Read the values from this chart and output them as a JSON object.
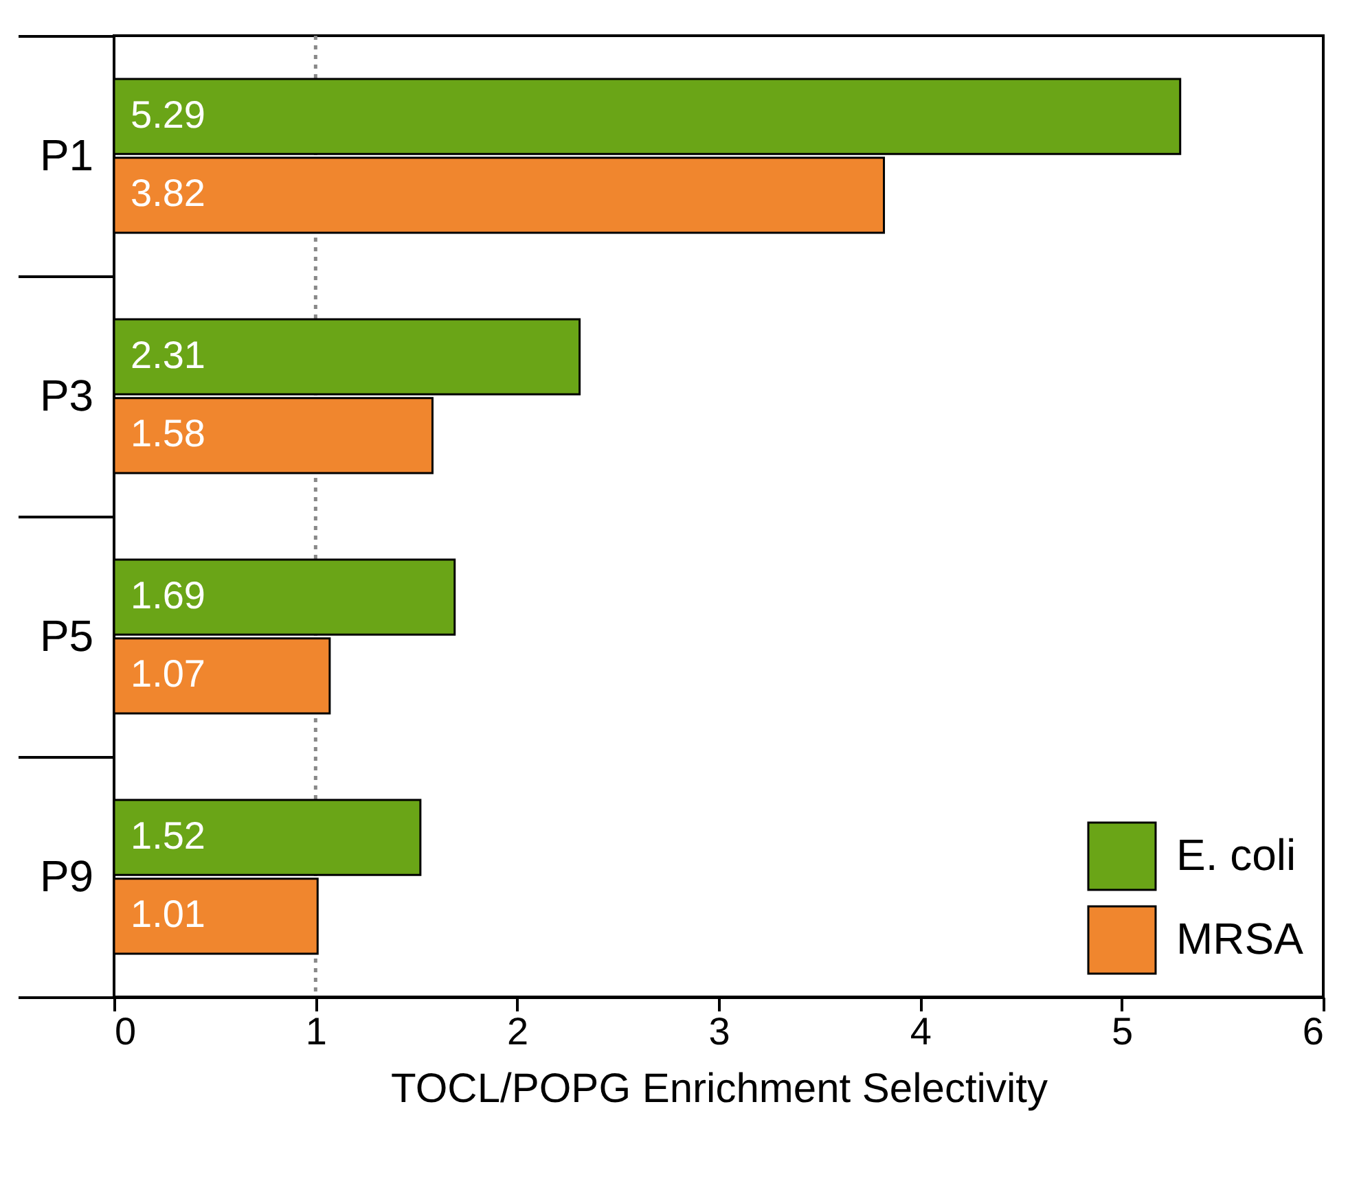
{
  "chart_data": {
    "type": "bar",
    "orientation": "horizontal",
    "xlabel": "TOCL/POPG Enrichment Selectivity",
    "categories": [
      "P1",
      "P3",
      "P5",
      "P9"
    ],
    "series": [
      {
        "name": "E. coli",
        "color": "#6aa517",
        "values": [
          5.29,
          2.31,
          1.69,
          1.52
        ]
      },
      {
        "name": "MRSA",
        "color": "#f0862e",
        "values": [
          3.82,
          1.58,
          1.07,
          1.01
        ]
      }
    ],
    "xlim": [
      0,
      6
    ],
    "xticks": [
      0,
      1,
      2,
      3,
      4,
      5,
      6
    ],
    "data_labels": true,
    "legend": "bottom right",
    "grid": false,
    "ref_lines": [
      {
        "axis": "x",
        "value": 1,
        "color": "#888888",
        "line_style": "dotted"
      }
    ]
  }
}
